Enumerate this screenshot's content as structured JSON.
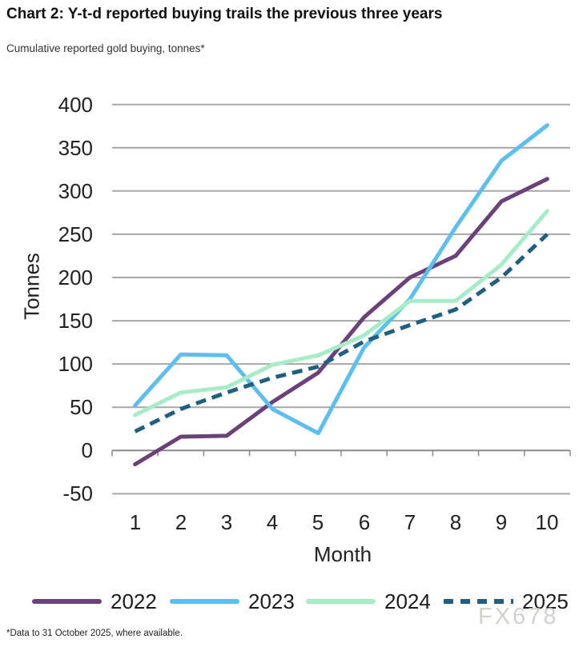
{
  "title": "Chart 2: Y-t-d reported buying trails the previous three years",
  "subtitle": "Cumulative reported gold buying, tonnes*",
  "footnote": "*Data to 31 October 2025, where available.",
  "watermark": "FX678",
  "colors": {
    "grid": "#a7a7a7",
    "axis": "#8a8a8a",
    "tick_text": "#222222",
    "title_text": "#111111"
  },
  "chart_data": {
    "type": "line",
    "title": "Chart 2: Y-t-d reported buying trails the previous three years",
    "subtitle": "Cumulative reported gold buying, tonnes*",
    "xlabel": "Month",
    "ylabel": "Tonnes",
    "x": [
      1,
      2,
      3,
      4,
      5,
      6,
      7,
      8,
      9,
      10
    ],
    "ylim": [
      -50,
      400
    ],
    "yticks": [
      400,
      350,
      300,
      250,
      200,
      150,
      100,
      50,
      0,
      -50
    ],
    "grid": "horizontal",
    "legend_position": "bottom",
    "series": [
      {
        "name": "2022",
        "color": "#6a4179",
        "style": "solid",
        "values": [
          -16,
          16,
          17,
          56,
          90,
          154,
          200,
          225,
          288,
          314
        ]
      },
      {
        "name": "2023",
        "color": "#5cbfef",
        "style": "solid",
        "values": [
          52,
          111,
          110,
          48,
          20,
          119,
          175,
          258,
          335,
          376
        ]
      },
      {
        "name": "2024",
        "color": "#a6ecc7",
        "style": "solid",
        "values": [
          41,
          67,
          73,
          99,
          110,
          133,
          173,
          173,
          215,
          277
        ]
      },
      {
        "name": "2025",
        "color": "#1f5f82",
        "style": "dashed",
        "values": [
          22,
          48,
          67,
          84,
          97,
          126,
          145,
          163,
          200,
          250
        ]
      }
    ]
  }
}
